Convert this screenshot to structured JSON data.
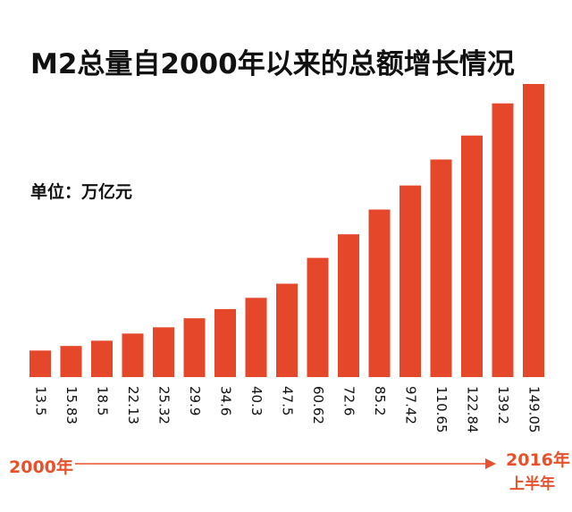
{
  "chart_data": {
    "type": "bar",
    "title": "M2总量自2000年以来的总额增长情况",
    "unit_label": "单位：万亿元",
    "categories": [
      "2000年",
      "",
      "",
      "",
      "",
      "",
      "",
      "",
      "",
      "",
      "",
      "",
      "",
      "",
      "",
      "",
      "2016年上半年"
    ],
    "values": [
      13.5,
      15.83,
      18.5,
      22.13,
      25.32,
      29.9,
      34.6,
      40.3,
      47.5,
      60.62,
      72.6,
      85.2,
      97.42,
      110.65,
      122.84,
      139.2,
      149.05
    ],
    "value_labels": [
      "13.5",
      "15.83",
      "18.5",
      "22.13",
      "25.32",
      "29.9",
      "34.6",
      "40.3",
      "47.5",
      "60.62",
      "72.6",
      "85.2",
      "97.42",
      "110.65",
      "122.84",
      "139.2",
      "149.05"
    ],
    "ylim": [
      0,
      149.05
    ],
    "grid": false,
    "legend": "none",
    "x_start_label": "2000年",
    "x_end_label": "2016年",
    "x_end_sublabel": "上半年",
    "colors": {
      "bar": "#e5472a",
      "accent": "#e8512b",
      "text": "#111111"
    }
  }
}
